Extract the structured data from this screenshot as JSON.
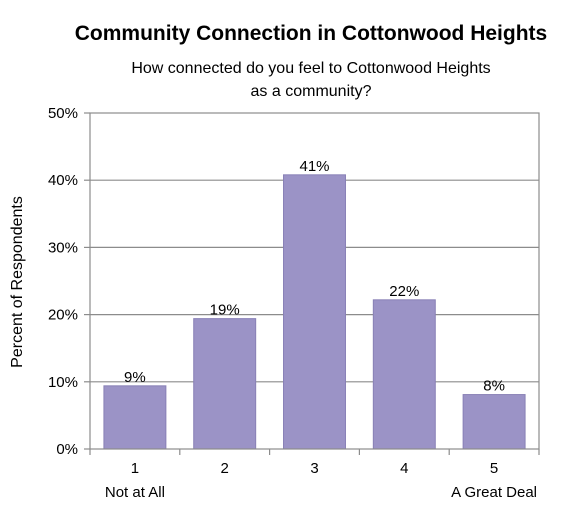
{
  "chart_data": {
    "type": "bar",
    "title": "Community Connection in Cottonwood Heights",
    "subtitle_lines": [
      "How connected do you feel to Cottonwood Heights",
      "as a community?"
    ],
    "ylabel": "Percent of Respondents",
    "xlabel": "",
    "categories": [
      "1",
      "2",
      "3",
      "4",
      "5"
    ],
    "category_sublabels": [
      "Not at All",
      "",
      "",
      "",
      "A Great Deal"
    ],
    "values": [
      9,
      19,
      41,
      22,
      8
    ],
    "bar_heights_estimated": [
      9.4,
      19.4,
      40.8,
      22.2,
      8.1
    ],
    "data_labels": [
      "9%",
      "19%",
      "41%",
      "22%",
      "8%"
    ],
    "ylim": [
      0,
      50
    ],
    "yticks": [
      0,
      10,
      20,
      30,
      40,
      50
    ],
    "ytick_labels": [
      "0%",
      "10%",
      "20%",
      "30%",
      "40%",
      "50%"
    ],
    "grid": true,
    "legend": "none",
    "colors": {
      "bar": "#9b93c6",
      "bar_edge": "#8880b6",
      "grid": "#8c8c8c",
      "frame": "#8c8c8c"
    }
  }
}
